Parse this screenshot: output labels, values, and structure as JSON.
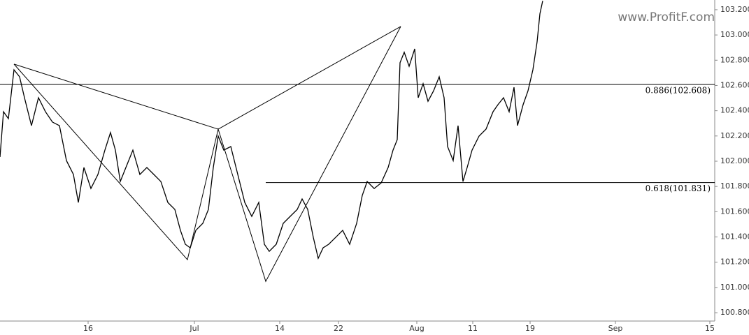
{
  "chart_data": {
    "type": "line",
    "watermark": "www.ProfitF.com",
    "x": [
      0.0,
      0.5,
      1.2,
      2.0,
      2.8,
      3.5,
      4.5,
      5.5,
      6.5,
      7.5,
      8.5,
      9.5,
      10.5,
      11.2,
      12.0,
      13.0,
      14.0,
      15.0,
      15.8,
      16.5,
      17.2,
      18.0,
      19.0,
      20.0,
      21.0,
      22.0,
      23.0,
      24.0,
      25.0,
      25.8,
      26.5,
      27.2,
      28.0,
      29.0,
      29.8,
      30.5,
      31.2,
      32.0,
      33.0,
      34.0,
      35.0,
      36.0,
      37.0,
      37.8,
      38.5,
      39.5,
      40.5,
      41.5,
      42.5,
      43.2,
      44.0,
      44.8,
      45.5,
      46.2,
      47.0,
      48.0,
      49.0,
      50.0,
      51.0,
      51.8,
      52.5,
      53.5,
      54.5,
      55.5,
      56.2,
      56.8,
      57.2,
      57.8,
      58.5,
      59.3,
      59.8,
      60.5,
      61.2,
      62.0,
      62.8,
      63.5,
      64.0,
      64.8,
      65.5,
      66.2,
      66.8,
      67.5,
      68.5,
      69.5,
      70.5,
      71.2,
      72.0,
      72.8,
      73.5,
      74.0,
      74.8,
      75.5,
      76.2,
      76.8,
      77.2,
      77.6
    ],
    "series": [
      {
        "color": "#000000",
        "values": [
          102.033,
          102.392,
          102.337,
          102.724,
          102.669,
          102.503,
          102.282,
          102.503,
          102.392,
          102.31,
          102.282,
          102.005,
          101.895,
          101.673,
          101.95,
          101.784,
          101.895,
          102.088,
          102.227,
          102.088,
          101.839,
          101.95,
          102.088,
          101.895,
          101.95,
          101.895,
          101.839,
          101.673,
          101.618,
          101.452,
          101.342,
          101.314,
          101.452,
          101.508,
          101.618,
          101.95,
          102.199,
          102.088,
          102.116,
          101.895,
          101.673,
          101.563,
          101.673,
          101.342,
          101.286,
          101.342,
          101.508,
          101.563,
          101.618,
          101.701,
          101.618,
          101.397,
          101.231,
          101.314,
          101.342,
          101.397,
          101.452,
          101.342,
          101.508,
          101.729,
          101.839,
          101.784,
          101.828,
          101.95,
          102.088,
          102.171,
          102.78,
          102.863,
          102.752,
          102.89,
          102.503,
          102.614,
          102.475,
          102.558,
          102.669,
          102.503,
          102.116,
          102.005,
          102.282,
          101.839,
          101.95,
          102.088,
          102.199,
          102.254,
          102.392,
          102.448,
          102.503,
          102.392,
          102.586,
          102.282,
          102.448,
          102.558,
          102.724,
          102.946,
          103.167,
          103.27
        ]
      }
    ],
    "pattern": {
      "x": [
        2.0,
        26.8,
        31.2,
        38.0,
        57.3
      ],
      "values": [
        102.769,
        101.22,
        102.254,
        101.048,
        103.067
      ]
    },
    "levels": [
      {
        "label": "0.886(102.608)",
        "value": 102.608,
        "start": 0.0
      },
      {
        "label": "0.618(101.831)",
        "value": 101.831,
        "start": 38.0
      }
    ],
    "xlim": [
      0,
      102.2
    ],
    "ylim": [
      100.734,
      103.277
    ],
    "xticks": [
      {
        "value": 12.6,
        "label": "16"
      },
      {
        "value": 27.8,
        "label": "Jul"
      },
      {
        "value": 40.0,
        "label": "14"
      },
      {
        "value": 48.4,
        "label": "22"
      },
      {
        "value": 59.6,
        "label": "Aug"
      },
      {
        "value": 67.6,
        "label": "11"
      },
      {
        "value": 75.8,
        "label": "19"
      },
      {
        "value": 88.0,
        "label": "Sep"
      },
      {
        "value": 101.5,
        "label": "15"
      }
    ],
    "yticks": [
      {
        "value": 100.8,
        "label": "100.800"
      },
      {
        "value": 101.0,
        "label": "101.000"
      },
      {
        "value": 101.2,
        "label": "101.200"
      },
      {
        "value": 101.4,
        "label": "101.400"
      },
      {
        "value": 101.6,
        "label": "101.600"
      },
      {
        "value": 101.8,
        "label": "101.800"
      },
      {
        "value": 102.0,
        "label": "102.000"
      },
      {
        "value": 102.2,
        "label": "102.200"
      },
      {
        "value": 102.4,
        "label": "102.400"
      },
      {
        "value": 102.6,
        "label": "102.600"
      },
      {
        "value": 102.8,
        "label": "102.800"
      },
      {
        "value": 103.0,
        "label": "103.000"
      },
      {
        "value": 103.2,
        "label": "103.200"
      }
    ]
  }
}
